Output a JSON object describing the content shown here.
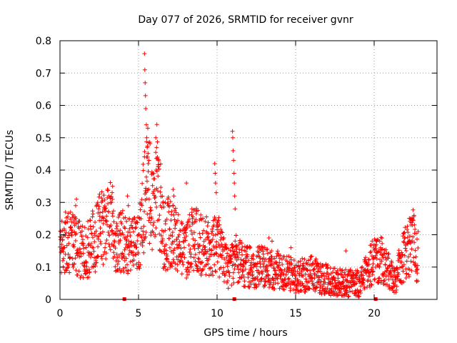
{
  "chart_data": {
    "type": "scatter",
    "title": "Day 077 of 2026, SRMTID for receiver gvnr",
    "xlabel": "GPS time / hours",
    "ylabel": "SRMTID / TECUs",
    "xlim": [
      0,
      24
    ],
    "ylim": [
      0,
      0.8
    ],
    "x_ticks": [
      0,
      5,
      10,
      15,
      20
    ],
    "y_ticks": [
      0,
      0.1,
      0.2,
      0.3,
      0.4,
      0.5,
      0.6,
      0.7,
      0.8
    ],
    "grid": true,
    "marker": "+",
    "colors": {
      "series": "#ff0000",
      "frame": "#000000",
      "grid": "#a0a0a0",
      "background": "#ffffff"
    },
    "series": [
      {
        "name": "SRMTID",
        "profile": [
          [
            0.0,
            0.15
          ],
          [
            0.5,
            0.19
          ],
          [
            1.0,
            0.17
          ],
          [
            1.5,
            0.14
          ],
          [
            2.0,
            0.17
          ],
          [
            2.5,
            0.21
          ],
          [
            3.0,
            0.25
          ],
          [
            3.3,
            0.27
          ],
          [
            3.5,
            0.16
          ],
          [
            4.0,
            0.19
          ],
          [
            4.5,
            0.17
          ],
          [
            5.0,
            0.18
          ],
          [
            5.3,
            0.28
          ],
          [
            5.6,
            0.38
          ],
          [
            5.9,
            0.26
          ],
          [
            6.2,
            0.38
          ],
          [
            6.6,
            0.19
          ],
          [
            7.0,
            0.21
          ],
          [
            7.5,
            0.17
          ],
          [
            8.0,
            0.15
          ],
          [
            8.5,
            0.19
          ],
          [
            9.0,
            0.17
          ],
          [
            9.5,
            0.16
          ],
          [
            10.0,
            0.18
          ],
          [
            10.4,
            0.12
          ],
          [
            10.8,
            0.09
          ],
          [
            11.2,
            0.13
          ],
          [
            11.6,
            0.11
          ],
          [
            12.0,
            0.1
          ],
          [
            13.0,
            0.1
          ],
          [
            14.0,
            0.09
          ],
          [
            15.0,
            0.07
          ],
          [
            16.0,
            0.08
          ],
          [
            17.0,
            0.06
          ],
          [
            18.0,
            0.05
          ],
          [
            19.0,
            0.05
          ],
          [
            19.5,
            0.08
          ],
          [
            20.0,
            0.13
          ],
          [
            20.5,
            0.12
          ],
          [
            21.0,
            0.08
          ],
          [
            21.3,
            0.05
          ],
          [
            21.6,
            0.1
          ],
          [
            22.0,
            0.15
          ],
          [
            22.5,
            0.18
          ],
          [
            22.8,
            0.1
          ]
        ],
        "peaks": [
          {
            "x": 5.38,
            "y": 0.76
          },
          {
            "x": 5.4,
            "y": 0.71
          },
          {
            "x": 5.42,
            "y": 0.67
          },
          {
            "x": 5.44,
            "y": 0.63
          },
          {
            "x": 5.46,
            "y": 0.59
          },
          {
            "x": 5.5,
            "y": 0.54
          },
          {
            "x": 5.52,
            "y": 0.5
          },
          {
            "x": 5.55,
            "y": 0.47
          },
          {
            "x": 5.58,
            "y": 0.44
          },
          {
            "x": 5.62,
            "y": 0.42
          },
          {
            "x": 6.1,
            "y": 0.5
          },
          {
            "x": 6.15,
            "y": 0.47
          },
          {
            "x": 6.2,
            "y": 0.44
          },
          {
            "x": 6.25,
            "y": 0.41
          },
          {
            "x": 9.85,
            "y": 0.42
          },
          {
            "x": 9.88,
            "y": 0.39
          },
          {
            "x": 9.9,
            "y": 0.36
          },
          {
            "x": 9.95,
            "y": 0.33
          },
          {
            "x": 10.98,
            "y": 0.52
          },
          {
            "x": 11.0,
            "y": 0.5
          },
          {
            "x": 11.02,
            "y": 0.46
          },
          {
            "x": 11.05,
            "y": 0.43
          },
          {
            "x": 11.08,
            "y": 0.39
          },
          {
            "x": 11.1,
            "y": 0.36
          },
          {
            "x": 11.12,
            "y": 0.32
          },
          {
            "x": 11.15,
            "y": 0.28
          },
          {
            "x": 8.05,
            "y": 0.36
          },
          {
            "x": 7.2,
            "y": 0.34
          },
          {
            "x": 7.25,
            "y": 0.32
          },
          {
            "x": 6.95,
            "y": 0.29
          },
          {
            "x": 3.35,
            "y": 0.35
          },
          {
            "x": 3.32,
            "y": 0.33
          },
          {
            "x": 4.3,
            "y": 0.32
          },
          {
            "x": 4.35,
            "y": 0.29
          },
          {
            "x": 1.05,
            "y": 0.31
          },
          {
            "x": 1.0,
            "y": 0.29
          },
          {
            "x": 2.4,
            "y": 0.3
          },
          {
            "x": 0.35,
            "y": 0.27
          },
          {
            "x": 22.3,
            "y": 0.25
          },
          {
            "x": 22.35,
            "y": 0.23
          },
          {
            "x": 22.8,
            "y": 0.21
          },
          {
            "x": 18.2,
            "y": 0.15
          },
          {
            "x": 13.3,
            "y": 0.19
          },
          {
            "x": 13.5,
            "y": 0.18
          },
          {
            "x": 14.7,
            "y": 0.16
          },
          {
            "x": 8.4,
            "y": 0.28
          },
          {
            "x": 6.7,
            "y": 0.3
          },
          {
            "x": 2.85,
            "y": 0.28
          }
        ]
      }
    ],
    "gap_markers": [
      4.1,
      11.1,
      20.1
    ]
  }
}
